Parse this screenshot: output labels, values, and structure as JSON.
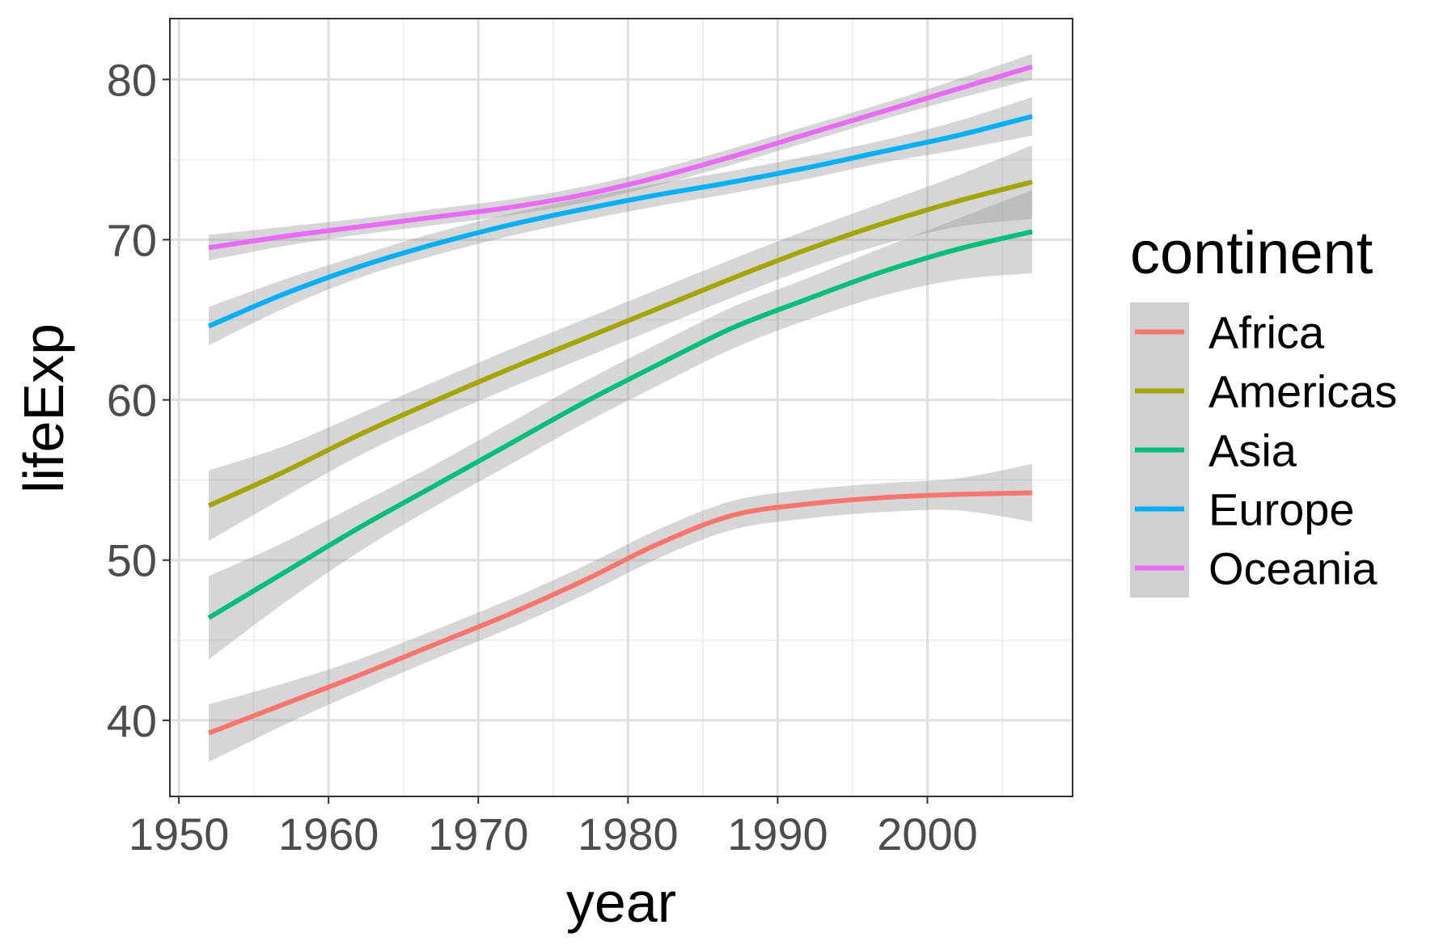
{
  "chart_data": {
    "type": "line",
    "x_label": "year",
    "y_label": "lifeExp",
    "legend_title": "continent",
    "x": [
      1952,
      1957,
      1962,
      1967,
      1972,
      1977,
      1982,
      1987,
      1992,
      1997,
      2002,
      2007
    ],
    "series": [
      {
        "name": "Africa",
        "color": "#F8766D",
        "values": [
          39.2,
          41.0,
          42.8,
          44.7,
          46.6,
          48.7,
          51.0,
          52.8,
          53.5,
          53.9,
          54.1,
          54.2
        ],
        "errors": [
          1.8,
          1.3,
          1.0,
          0.9,
          0.9,
          0.9,
          0.9,
          0.9,
          0.9,
          0.9,
          1.0,
          1.8
        ]
      },
      {
        "name": "Americas",
        "color": "#A3A500",
        "values": [
          53.4,
          55.5,
          57.8,
          59.9,
          61.9,
          63.8,
          65.7,
          67.6,
          69.4,
          71.0,
          72.4,
          73.6
        ],
        "errors": [
          2.2,
          1.6,
          1.3,
          1.2,
          1.2,
          1.2,
          1.2,
          1.2,
          1.2,
          1.3,
          1.6,
          2.3
        ]
      },
      {
        "name": "Asia",
        "color": "#00BF7D",
        "values": [
          46.4,
          49.2,
          52.0,
          54.6,
          57.2,
          59.8,
          62.2,
          64.5,
          66.3,
          68.0,
          69.4,
          70.5
        ],
        "errors": [
          2.6,
          1.9,
          1.5,
          1.3,
          1.3,
          1.3,
          1.3,
          1.3,
          1.3,
          1.5,
          1.9,
          2.6
        ]
      },
      {
        "name": "Europe",
        "color": "#00B0F6",
        "values": [
          64.6,
          66.6,
          68.3,
          69.7,
          70.9,
          71.9,
          72.8,
          73.6,
          74.5,
          75.5,
          76.5,
          77.7
        ],
        "errors": [
          1.2,
          0.9,
          0.7,
          0.7,
          0.7,
          0.7,
          0.7,
          0.7,
          0.7,
          0.7,
          0.9,
          1.2
        ]
      },
      {
        "name": "Oceania",
        "color": "#E76BF3",
        "values": [
          69.5,
          70.2,
          70.8,
          71.4,
          72.0,
          72.8,
          73.9,
          75.2,
          76.6,
          78.0,
          79.4,
          80.8
        ],
        "errors": [
          0.8,
          0.6,
          0.5,
          0.5,
          0.5,
          0.5,
          0.5,
          0.5,
          0.5,
          0.5,
          0.6,
          0.8
        ]
      }
    ],
    "xlim": [
      1949.4,
      2009.7
    ],
    "ylim": [
      35.25,
      83.8
    ],
    "xticks": [
      1950,
      1960,
      1970,
      1980,
      1990,
      2000
    ],
    "yticks": [
      40,
      50,
      60,
      70,
      80
    ],
    "x_minor_grid": [
      1955,
      1965,
      1975,
      1985,
      1995,
      2005
    ],
    "y_minor_grid": [
      45,
      55,
      65,
      75
    ],
    "grid": true,
    "band_color": "#999999",
    "legend": "right"
  }
}
